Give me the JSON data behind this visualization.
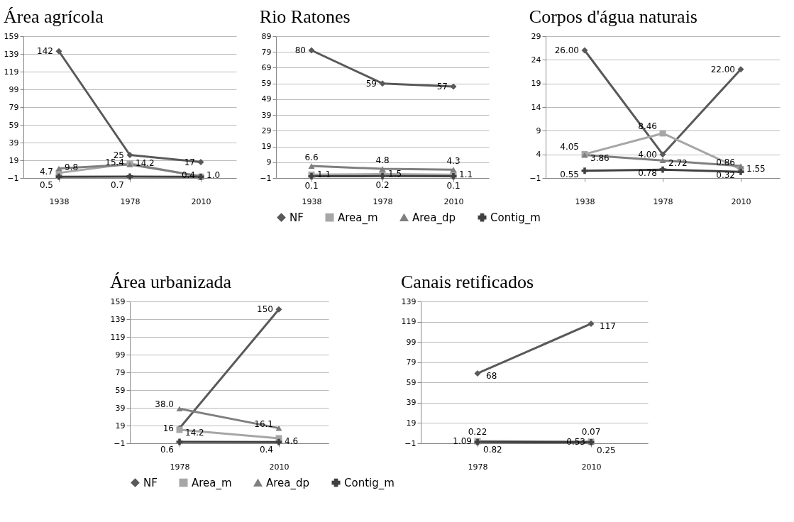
{
  "chart_data": [
    {
      "type": "line",
      "title": "Área agrícola",
      "categories": [
        "1938",
        "1978",
        "2010"
      ],
      "ylim": [
        -1,
        159
      ],
      "yticks": [
        -1,
        19,
        39,
        59,
        79,
        99,
        119,
        139,
        159
      ],
      "grid": "y",
      "series": [
        {
          "color": "#595959",
          "marker": "diamond",
          "values": [
            142,
            25,
            17
          ],
          "value_labels": [
            "142",
            "25",
            "17"
          ]
        },
        {
          "color": "#a6a6a6",
          "marker": "square",
          "values": [
            4.7,
            15.4,
            0.4
          ],
          "value_labels": [
            "4.7",
            "15.4",
            "0.4"
          ]
        },
        {
          "color": "#7f7f7f",
          "marker": "triangle",
          "values": [
            9.8,
            14.2,
            1.0
          ],
          "value_labels": [
            "9.8",
            "14.2",
            "1.0"
          ]
        },
        {
          "color": "#404040",
          "marker": "cross",
          "values": [
            0.5,
            0.7,
            0.4
          ],
          "value_labels": [
            "0.5",
            "0.7",
            null
          ]
        }
      ]
    },
    {
      "type": "line",
      "title": "Rio Ratones",
      "categories": [
        "1938",
        "1978",
        "2010"
      ],
      "ylim": [
        -1,
        89
      ],
      "yticks": [
        -1,
        9,
        19,
        29,
        39,
        49,
        59,
        69,
        79,
        89
      ],
      "grid": "y",
      "legend": "bottom",
      "series": [
        {
          "name": "NF",
          "color": "#595959",
          "marker": "diamond",
          "values": [
            80,
            59,
            57
          ],
          "value_labels": [
            "80",
            "59",
            "57"
          ]
        },
        {
          "name": "Area_m",
          "color": "#a6a6a6",
          "marker": "square",
          "values": [
            1.1,
            1.5,
            1.1
          ],
          "value_labels": [
            "1.1",
            "1.5",
            "1.1"
          ]
        },
        {
          "name": "Area_dp",
          "color": "#7f7f7f",
          "marker": "triangle",
          "values": [
            6.6,
            4.8,
            4.3
          ],
          "value_labels": [
            "6.6",
            "4.8",
            "4.3"
          ]
        },
        {
          "name": "Contig_m",
          "color": "#404040",
          "marker": "cross",
          "values": [
            0.1,
            0.2,
            0.1
          ],
          "value_labels": [
            "0.1",
            "0.2",
            "0.1"
          ]
        }
      ]
    },
    {
      "type": "line",
      "title": "Corpos d'água naturais",
      "categories": [
        "1938",
        "1978",
        "2010"
      ],
      "ylim": [
        -1,
        29
      ],
      "yticks": [
        -1,
        4,
        9,
        14,
        19,
        24,
        29
      ],
      "grid": "y",
      "series": [
        {
          "color": "#595959",
          "marker": "diamond",
          "values": [
            26,
            4,
            22
          ],
          "value_labels": [
            "26.00",
            "4.00",
            "22.00"
          ]
        },
        {
          "color": "#a6a6a6",
          "marker": "square",
          "values": [
            4.05,
            8.46,
            0.86
          ],
          "value_labels": [
            "4.05",
            "8.46",
            "0.86"
          ]
        },
        {
          "color": "#7f7f7f",
          "marker": "triangle",
          "values": [
            3.86,
            2.72,
            1.55
          ],
          "value_labels": [
            "3.86",
            "2.72",
            "1.55"
          ]
        },
        {
          "color": "#404040",
          "marker": "cross",
          "values": [
            0.55,
            0.78,
            0.32
          ],
          "value_labels": [
            "0.55",
            "0.78",
            "0.32"
          ]
        }
      ]
    },
    {
      "type": "line",
      "title": "Área urbanizada",
      "categories": [
        "1978",
        "2010"
      ],
      "ylim": [
        -1,
        159
      ],
      "yticks": [
        -1,
        19,
        39,
        59,
        79,
        99,
        119,
        139,
        159
      ],
      "grid": "y",
      "legend": "bottom",
      "series": [
        {
          "name": "NF",
          "color": "#595959",
          "marker": "diamond",
          "values": [
            16,
            150
          ],
          "value_labels": [
            "16",
            "150"
          ]
        },
        {
          "name": "Area_m",
          "color": "#a6a6a6",
          "marker": "square",
          "values": [
            14.2,
            4.6
          ],
          "value_labels": [
            "14.2",
            "4.6"
          ]
        },
        {
          "name": "Area_dp",
          "color": "#7f7f7f",
          "marker": "triangle",
          "values": [
            38.0,
            16.1
          ],
          "value_labels": [
            "38.0",
            "16.1"
          ]
        },
        {
          "name": "Contig_m",
          "color": "#404040",
          "marker": "cross",
          "values": [
            0.6,
            0.4
          ],
          "value_labels": [
            "0.6",
            "0.4"
          ]
        }
      ]
    },
    {
      "type": "line",
      "title": "Canais retificados",
      "categories": [
        "1978",
        "2010"
      ],
      "ylim": [
        -1,
        139
      ],
      "yticks": [
        -1,
        19,
        39,
        59,
        79,
        99,
        119,
        139
      ],
      "grid": "y",
      "series": [
        {
          "color": "#595959",
          "marker": "diamond",
          "values": [
            68,
            117
          ],
          "value_labels": [
            "68",
            "117"
          ]
        },
        {
          "color": "#a6a6a6",
          "marker": "square",
          "values": [
            1.09,
            0.53
          ],
          "value_labels": [
            "1.09",
            "0.53"
          ]
        },
        {
          "color": "#7f7f7f",
          "marker": "triangle",
          "values": [
            0.82,
            0.25
          ],
          "value_labels": [
            "0.82",
            "0.25"
          ]
        },
        {
          "color": "#404040",
          "marker": "cross",
          "values": [
            0.22,
            0.07
          ],
          "value_labels": [
            "0.22",
            "0.07"
          ]
        }
      ]
    }
  ]
}
